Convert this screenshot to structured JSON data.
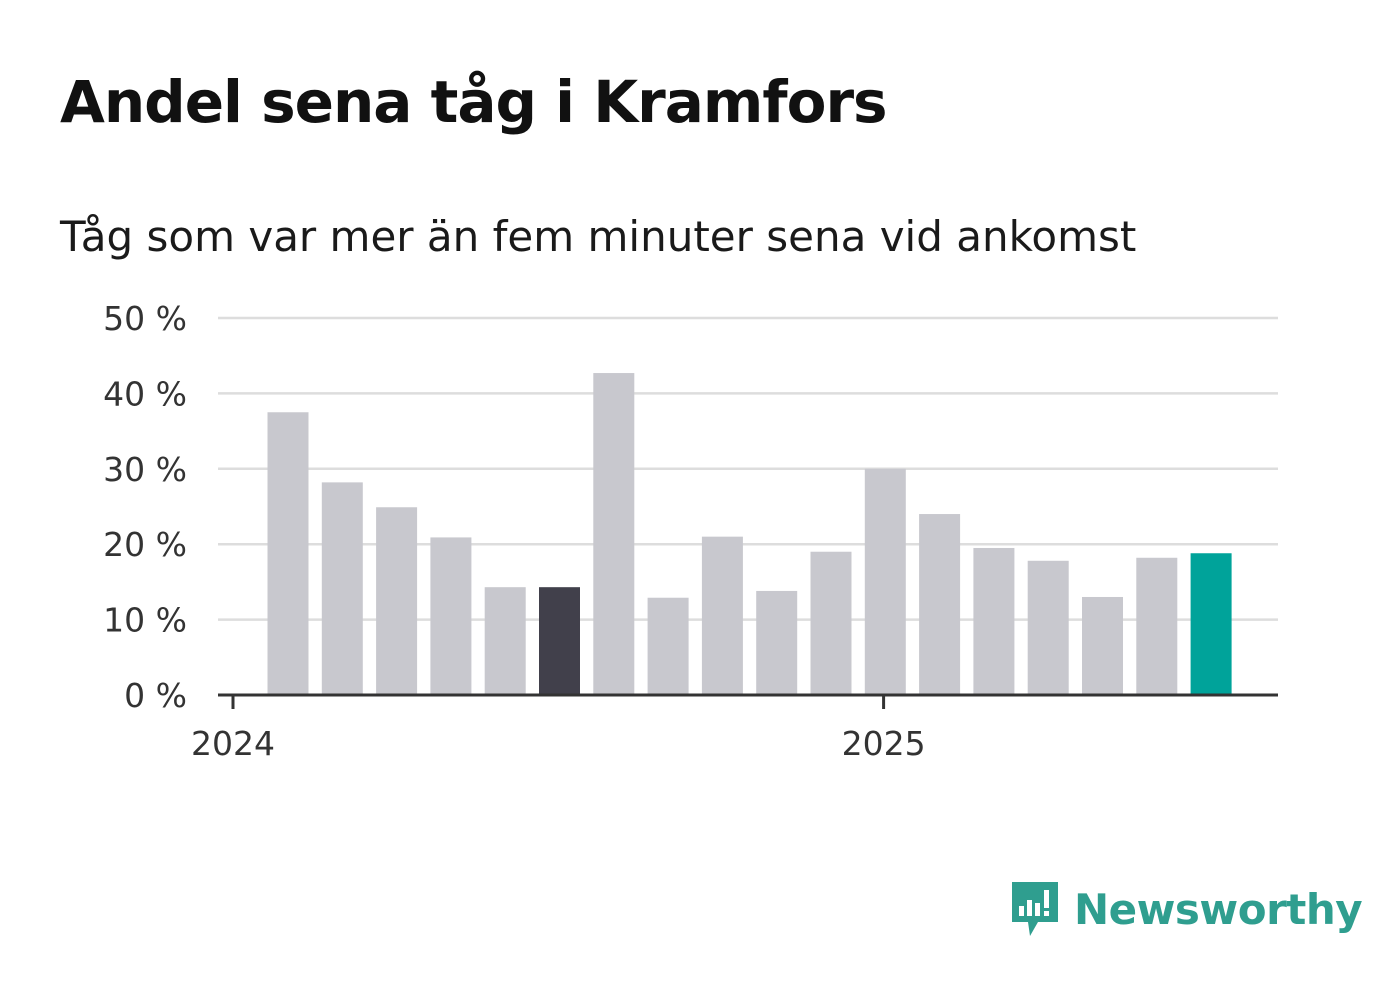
{
  "title": "Andel sena tåg i Kramfors",
  "subtitle": "Tåg som var mer än fem minuter sena vid ankomst",
  "brand": {
    "name": "Newsworthy",
    "color": "#2f9e8f",
    "icon": "newsworthy-logo-icon"
  },
  "chart_data": {
    "type": "bar",
    "ylim": [
      0,
      50
    ],
    "y_ticks": [
      {
        "value": 0,
        "label": "0 %"
      },
      {
        "value": 10,
        "label": "10 %"
      },
      {
        "value": 20,
        "label": "20 %"
      },
      {
        "value": 30,
        "label": "30 %"
      },
      {
        "value": 40,
        "label": "40 %"
      },
      {
        "value": 50,
        "label": "50 %"
      }
    ],
    "x_ticks": [
      {
        "position": 0,
        "label": "2024"
      },
      {
        "position": 12,
        "label": "2025"
      }
    ],
    "values": [
      37.5,
      28.2,
      24.9,
      20.9,
      14.3,
      14.3,
      42.7,
      12.9,
      21.0,
      13.8,
      19.0,
      30.0,
      24.0,
      19.5,
      17.8,
      13.0,
      18.2,
      18.8
    ],
    "highlight": {
      "dark_index": 5,
      "accent_index": 17
    },
    "colors": {
      "default": "#c8c8ce",
      "dark": "#41404b",
      "accent": "#00a39a",
      "grid": "#dddddd",
      "axis": "#333333"
    },
    "grid": true
  }
}
